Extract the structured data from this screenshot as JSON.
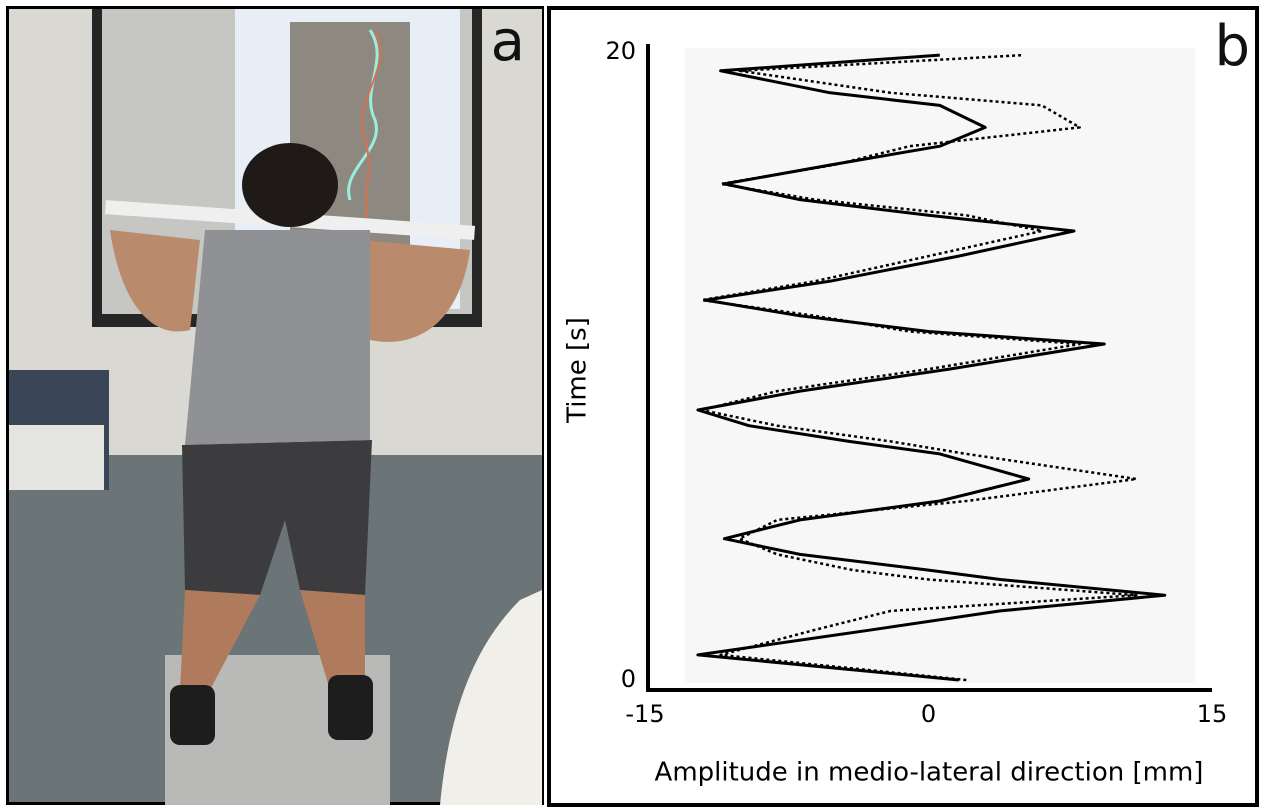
{
  "panel_labels": [
    "a",
    "b"
  ],
  "chart_data": {
    "type": "line",
    "horizontal_values": true,
    "xlabel": "Time [s]",
    "ylabel": "Amplitude in medio-lateral direction [mm]",
    "x": [
      0,
      0.8,
      1.6,
      2.2,
      2.7,
      3.2,
      3.5,
      4.0,
      4.5,
      5.1,
      5.7,
      6.4,
      7.2,
      7.6,
      8.1,
      8.6,
      9.2,
      9.9,
      10.7,
      11.1,
      11.6,
      12.1,
      12.7,
      13.5,
      14.3,
      14.8,
      15.3,
      15.8,
      16.4,
      17.0,
      17.6,
      18.3,
      18.7,
      19.4,
      19.9
    ],
    "series": [
      {
        "color": "#000000",
        "style": "solid",
        "values": [
          1.6,
          -12.2,
          -3,
          3.8,
          12.5,
          3.8,
          0,
          -6.8,
          -10.8,
          -6.8,
          0.6,
          5.3,
          0.6,
          -4.2,
          -9.5,
          -12.2,
          -6.8,
          1.1,
          9.3,
          0,
          -6.8,
          -11.8,
          -5.2,
          1.6,
          7.7,
          0,
          -6.8,
          -10.8,
          -5.2,
          0.6,
          3,
          0.6,
          -5.2,
          -11,
          0.6
        ]
      },
      {
        "color": "#000000",
        "style": "dotted",
        "values": [
          2,
          -11,
          -6,
          -2,
          11,
          0,
          -4,
          -8,
          -10,
          -8,
          2,
          11,
          2,
          -2,
          -8,
          -12,
          -8,
          0,
          8,
          -1,
          -6,
          -12,
          -6,
          0,
          6,
          2,
          -6,
          -11,
          -5,
          -1,
          8,
          6,
          -2,
          -10,
          5
        ]
      }
    ],
    "xlim": [
      0,
      20
    ],
    "xticks": [
      0,
      20
    ],
    "ylim": [
      -15,
      15
    ],
    "yticks": [
      -15,
      0,
      15
    ]
  }
}
